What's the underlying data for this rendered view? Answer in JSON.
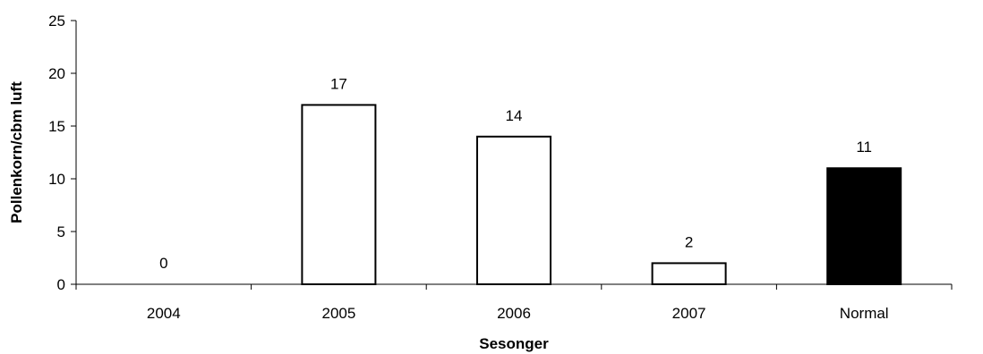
{
  "chart_data": {
    "type": "bar",
    "title": "",
    "xlabel": "Sesonger",
    "ylabel": "Pollenkorn/cbm luft",
    "categories": [
      "2004",
      "2005",
      "2006",
      "2007",
      "Normal"
    ],
    "values": [
      0,
      17,
      14,
      2,
      11
    ],
    "data_labels": [
      "0",
      "17",
      "14",
      "2",
      "11"
    ],
    "bar_colors": [
      "#ffffff",
      "#ffffff",
      "#ffffff",
      "#ffffff",
      "#000000"
    ],
    "bar_stroke": "#000000",
    "ylim": [
      0,
      25
    ],
    "yticks": [
      0,
      5,
      10,
      15,
      20,
      25
    ],
    "ytick_labels": [
      "0",
      "5",
      "10",
      "15",
      "20",
      "25"
    ],
    "grid": false,
    "legend": "none"
  }
}
